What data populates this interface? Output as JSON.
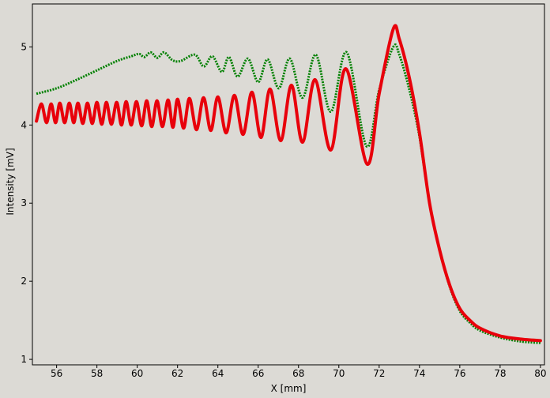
{
  "chart_data": {
    "type": "line",
    "x_label": "X [mm]",
    "y_label": "Intensity [mV]",
    "xlim": [
      54.8,
      80.2
    ],
    "ylim": [
      0.93,
      5.55
    ],
    "xticks": [
      56,
      58,
      60,
      62,
      64,
      66,
      68,
      70,
      72,
      74,
      76,
      78,
      80
    ],
    "yticks": [
      1,
      2,
      3,
      4,
      5
    ],
    "grid": false,
    "series": [
      {
        "color": "#008000",
        "style": "dotted",
        "x": [
          55.0,
          56.0,
          57.0,
          58.0,
          59.0,
          59.7,
          60.1,
          60.35,
          60.67,
          61.0,
          61.33,
          61.75,
          62.16,
          62.86,
          63.3,
          63.73,
          64.2,
          64.55,
          64.98,
          65.49,
          66.0,
          66.47,
          67.02,
          67.57,
          68.2,
          68.86,
          69.6,
          70.39,
          71.37,
          72.0,
          72.7,
          73.0,
          73.5,
          74.0,
          74.5,
          75.0,
          75.5,
          76.0,
          76.5,
          77.0,
          78.0,
          79.0,
          80.0
        ],
        "values": [
          4.4,
          4.47,
          4.58,
          4.7,
          4.82,
          4.88,
          4.91,
          4.87,
          4.93,
          4.86,
          4.93,
          4.83,
          4.82,
          4.9,
          4.75,
          4.88,
          4.68,
          4.87,
          4.62,
          4.85,
          4.55,
          4.84,
          4.47,
          4.85,
          4.35,
          4.9,
          4.17,
          4.93,
          3.73,
          4.45,
          5.0,
          4.9,
          4.45,
          3.85,
          3.0,
          2.4,
          1.93,
          1.62,
          1.47,
          1.37,
          1.28,
          1.23,
          1.21
        ]
      },
      {
        "color": "#e8000b",
        "style": "solid",
        "x": [
          55.0,
          55.25,
          55.5,
          55.73,
          55.95,
          56.16,
          56.4,
          56.63,
          56.85,
          57.06,
          57.3,
          57.53,
          57.77,
          58.0,
          58.24,
          58.47,
          58.72,
          58.98,
          59.22,
          59.45,
          59.7,
          59.96,
          60.22,
          60.47,
          60.72,
          60.98,
          61.25,
          61.53,
          61.77,
          62.0,
          62.3,
          62.59,
          62.94,
          63.29,
          63.65,
          64.0,
          64.41,
          64.82,
          65.25,
          65.69,
          66.14,
          66.59,
          67.12,
          67.65,
          68.2,
          68.82,
          69.6,
          70.35,
          71.4,
          72.0,
          72.7,
          73.0,
          73.5,
          74.0,
          74.5,
          75.0,
          75.5,
          76.0,
          76.5,
          77.0,
          78.0,
          79.0,
          80.0
        ],
        "values": [
          4.05,
          4.27,
          4.03,
          4.27,
          4.03,
          4.28,
          4.03,
          4.28,
          4.03,
          4.28,
          4.02,
          4.28,
          4.02,
          4.29,
          4.01,
          4.29,
          4.01,
          4.29,
          4.0,
          4.3,
          4.0,
          4.3,
          3.99,
          4.31,
          3.98,
          4.31,
          3.98,
          4.32,
          3.97,
          4.33,
          3.96,
          4.34,
          3.94,
          4.35,
          3.93,
          4.36,
          3.9,
          4.38,
          3.88,
          4.42,
          3.84,
          4.46,
          3.8,
          4.51,
          3.78,
          4.58,
          3.68,
          4.72,
          3.5,
          4.4,
          5.23,
          5.1,
          4.6,
          3.9,
          3.0,
          2.4,
          1.95,
          1.65,
          1.5,
          1.4,
          1.3,
          1.26,
          1.24
        ]
      }
    ]
  }
}
